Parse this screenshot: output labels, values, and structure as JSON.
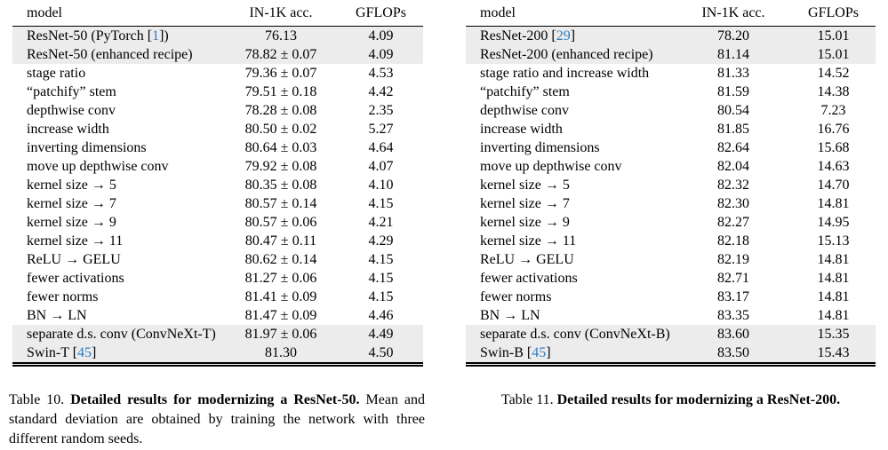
{
  "citation_color": "#2e7cbf",
  "shaded_row_color": "#ececec",
  "tables": [
    {
      "headers": [
        "model",
        "IN-1K acc.",
        "GFLOPs"
      ],
      "rows": [
        {
          "model_pre": "ResNet-50 (PyTorch [",
          "cite": "1",
          "model_post": "])",
          "acc": "76.13",
          "flops": "4.09",
          "shaded": true
        },
        {
          "model_pre": "ResNet-50 (enhanced recipe)",
          "cite": "",
          "model_post": "",
          "acc": "78.82 ± 0.07",
          "flops": "4.09",
          "shaded": true
        },
        {
          "model_pre": "stage ratio",
          "cite": "",
          "model_post": "",
          "acc": "79.36 ± 0.07",
          "flops": "4.53",
          "shaded": false
        },
        {
          "model_pre": "“patchify” stem",
          "cite": "",
          "model_post": "",
          "acc": "79.51 ± 0.18",
          "flops": "4.42",
          "shaded": false
        },
        {
          "model_pre": "depthwise conv",
          "cite": "",
          "model_post": "",
          "acc": "78.28 ± 0.08",
          "flops": "2.35",
          "shaded": false
        },
        {
          "model_pre": "increase width",
          "cite": "",
          "model_post": "",
          "acc": "80.50 ± 0.02",
          "flops": "5.27",
          "shaded": false
        },
        {
          "model_pre": "inverting dimensions",
          "cite": "",
          "model_post": "",
          "acc": "80.64 ± 0.03",
          "flops": "4.64",
          "shaded": false
        },
        {
          "model_pre": "move up depthwise conv",
          "cite": "",
          "model_post": "",
          "acc": "79.92 ± 0.08",
          "flops": "4.07",
          "shaded": false
        },
        {
          "model_pre": "kernel size → 5",
          "cite": "",
          "model_post": "",
          "acc": "80.35 ± 0.08",
          "flops": "4.10",
          "shaded": false
        },
        {
          "model_pre": "kernel size → 7",
          "cite": "",
          "model_post": "",
          "acc": "80.57 ± 0.14",
          "flops": "4.15",
          "shaded": false
        },
        {
          "model_pre": "kernel size → 9",
          "cite": "",
          "model_post": "",
          "acc": "80.57 ± 0.06",
          "flops": "4.21",
          "shaded": false
        },
        {
          "model_pre": "kernel size → 11",
          "cite": "",
          "model_post": "",
          "acc": "80.47 ± 0.11",
          "flops": "4.29",
          "shaded": false
        },
        {
          "model_pre": "ReLU → GELU",
          "cite": "",
          "model_post": "",
          "acc": "80.62 ± 0.14",
          "flops": "4.15",
          "shaded": false
        },
        {
          "model_pre": "fewer activations",
          "cite": "",
          "model_post": "",
          "acc": "81.27 ± 0.06",
          "flops": "4.15",
          "shaded": false
        },
        {
          "model_pre": "fewer norms",
          "cite": "",
          "model_post": "",
          "acc": "81.41 ± 0.09",
          "flops": "4.15",
          "shaded": false
        },
        {
          "model_pre": "BN → LN",
          "cite": "",
          "model_post": "",
          "acc": "81.47 ± 0.09",
          "flops": "4.46",
          "shaded": false
        },
        {
          "model_pre": "separate d.s. conv (ConvNeXt-T)",
          "cite": "",
          "model_post": "",
          "acc": "81.97 ± 0.06",
          "flops": "4.49",
          "shaded": true
        },
        {
          "model_pre": "Swin-T [",
          "cite": "45",
          "model_post": "]",
          "acc": "81.30",
          "flops": "4.50",
          "shaded": true
        }
      ],
      "caption": {
        "label": "Table 10.",
        "bold": "Detailed results for modernizing a ResNet-50.",
        "rest": "Mean and standard deviation are obtained by training the network with three different random seeds."
      }
    },
    {
      "headers": [
        "model",
        "IN-1K acc.",
        "GFLOPs"
      ],
      "rows": [
        {
          "model_pre": "ResNet-200 [",
          "cite": "29",
          "model_post": "]",
          "acc": "78.20",
          "flops": "15.01",
          "shaded": true
        },
        {
          "model_pre": "ResNet-200 (enhanced recipe)",
          "cite": "",
          "model_post": "",
          "acc": "81.14",
          "flops": "15.01",
          "shaded": true
        },
        {
          "model_pre": "stage ratio and increase width",
          "cite": "",
          "model_post": "",
          "acc": "81.33",
          "flops": "14.52",
          "shaded": false
        },
        {
          "model_pre": "“patchify” stem",
          "cite": "",
          "model_post": "",
          "acc": "81.59",
          "flops": "14.38",
          "shaded": false
        },
        {
          "model_pre": "depthwise conv",
          "cite": "",
          "model_post": "",
          "acc": "80.54",
          "flops": "7.23",
          "shaded": false
        },
        {
          "model_pre": "increase width",
          "cite": "",
          "model_post": "",
          "acc": "81.85",
          "flops": "16.76",
          "shaded": false
        },
        {
          "model_pre": "inverting dimensions",
          "cite": "",
          "model_post": "",
          "acc": "82.64",
          "flops": "15.68",
          "shaded": false
        },
        {
          "model_pre": "move up depthwise conv",
          "cite": "",
          "model_post": "",
          "acc": "82.04",
          "flops": "14.63",
          "shaded": false
        },
        {
          "model_pre": "kernel size → 5",
          "cite": "",
          "model_post": "",
          "acc": "82.32",
          "flops": "14.70",
          "shaded": false
        },
        {
          "model_pre": "kernel size → 7",
          "cite": "",
          "model_post": "",
          "acc": "82.30",
          "flops": "14.81",
          "shaded": false
        },
        {
          "model_pre": "kernel size → 9",
          "cite": "",
          "model_post": "",
          "acc": "82.27",
          "flops": "14.95",
          "shaded": false
        },
        {
          "model_pre": "kernel size → 11",
          "cite": "",
          "model_post": "",
          "acc": "82.18",
          "flops": "15.13",
          "shaded": false
        },
        {
          "model_pre": "ReLU → GELU",
          "cite": "",
          "model_post": "",
          "acc": "82.19",
          "flops": "14.81",
          "shaded": false
        },
        {
          "model_pre": "fewer activations",
          "cite": "",
          "model_post": "",
          "acc": "82.71",
          "flops": "14.81",
          "shaded": false
        },
        {
          "model_pre": "fewer norms",
          "cite": "",
          "model_post": "",
          "acc": "83.17",
          "flops": "14.81",
          "shaded": false
        },
        {
          "model_pre": "BN → LN",
          "cite": "",
          "model_post": "",
          "acc": "83.35",
          "flops": "14.81",
          "shaded": false
        },
        {
          "model_pre": "separate d.s. conv (ConvNeXt-B)",
          "cite": "",
          "model_post": "",
          "acc": "83.60",
          "flops": "15.35",
          "shaded": true
        },
        {
          "model_pre": "Swin-B [",
          "cite": "45",
          "model_post": "]",
          "acc": "83.50",
          "flops": "15.43",
          "shaded": true
        }
      ],
      "caption": {
        "label": "Table 11.",
        "bold": "Detailed results for modernizing a ResNet-200.",
        "rest": ""
      }
    }
  ]
}
